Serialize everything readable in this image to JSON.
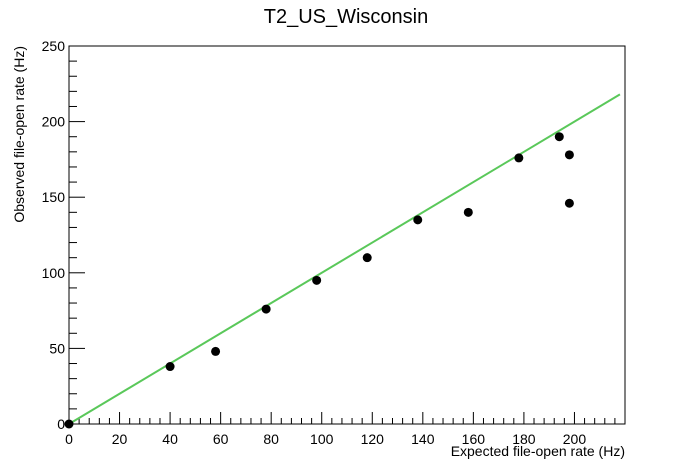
{
  "chart_data": {
    "type": "scatter",
    "title": "T2_US_Wisconsin",
    "xlabel": "Expected file-open rate (Hz)",
    "ylabel": "Observed file-open rate (Hz)",
    "xlim": [
      0,
      220
    ],
    "ylim": [
      0,
      250
    ],
    "x_ticks": [
      "0",
      "20",
      "40",
      "60",
      "80",
      "100",
      "120",
      "140",
      "160",
      "180",
      "200"
    ],
    "y_ticks": [
      "0",
      "50",
      "100",
      "150",
      "200",
      "250"
    ],
    "series": [
      {
        "marker_color": "#000000",
        "points": [
          {
            "x": 0,
            "y": 0
          },
          {
            "x": 40,
            "y": 38
          },
          {
            "x": 58,
            "y": 48
          },
          {
            "x": 78,
            "y": 76
          },
          {
            "x": 98,
            "y": 95
          },
          {
            "x": 118,
            "y": 110
          },
          {
            "x": 138,
            "y": 135
          },
          {
            "x": 158,
            "y": 140
          },
          {
            "x": 178,
            "y": 176
          },
          {
            "x": 194,
            "y": 190
          },
          {
            "x": 198,
            "y": 178
          },
          {
            "x": 198,
            "y": 146
          }
        ]
      }
    ],
    "fit_line": {
      "color": "#5ac85a",
      "from": {
        "x": 0,
        "y": 0
      },
      "to": {
        "x": 218,
        "y": 218
      }
    },
    "grid": false,
    "legend": "none"
  }
}
